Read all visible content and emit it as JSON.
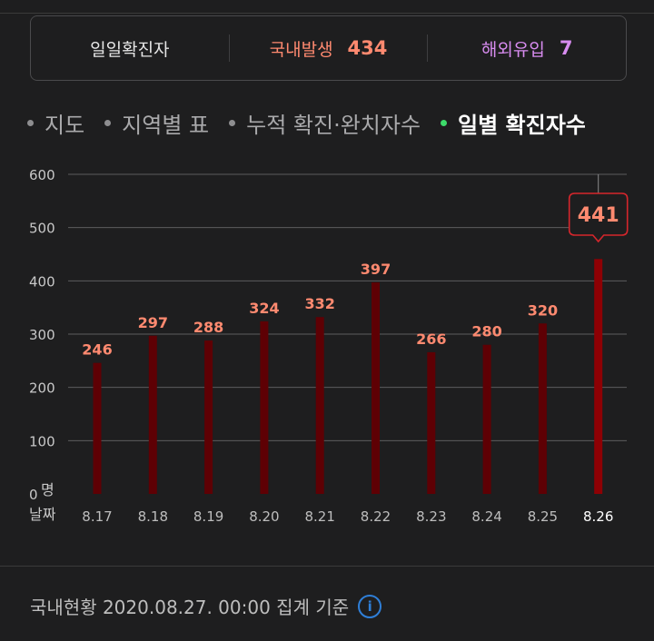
{
  "summary": {
    "total_label": "일일확진자",
    "domestic_label": "국내발생",
    "domestic_value": "434",
    "abroad_label": "해외유입",
    "abroad_value": "7"
  },
  "tabs": [
    {
      "label": "지도",
      "active": false
    },
    {
      "label": "지역별 표",
      "active": false
    },
    {
      "label": "누적 확진·완치자수",
      "active": false
    },
    {
      "label": "일별 확진자수",
      "active": true
    }
  ],
  "colors": {
    "bar": "#5e0004",
    "bar_highlight": "#8e0004",
    "value_label": "#ff8a70",
    "callout_border": "#d6262c"
  },
  "chart_data": {
    "type": "bar",
    "categories": [
      "8.17",
      "8.18",
      "8.19",
      "8.20",
      "8.21",
      "8.22",
      "8.23",
      "8.24",
      "8.25",
      "8.26"
    ],
    "values": [
      246,
      297,
      288,
      324,
      332,
      397,
      266,
      280,
      320,
      441
    ],
    "value_labels": [
      "246",
      "297",
      "288",
      "324",
      "332",
      "397",
      "266",
      "280",
      "320",
      "441"
    ],
    "highlight_index": 9,
    "ylim": [
      0,
      600
    ],
    "yticks": [
      0,
      100,
      200,
      300,
      400,
      500,
      600
    ],
    "ytick_labels": [
      "0",
      "100",
      "200",
      "300",
      "400",
      "500",
      "600"
    ],
    "y_unit": "명",
    "x_axis_label": "날짜",
    "grid": true
  },
  "footer": {
    "text": "국내현황 2020.08.27. 00:00 집계 기준",
    "info_icon": "info-icon"
  }
}
